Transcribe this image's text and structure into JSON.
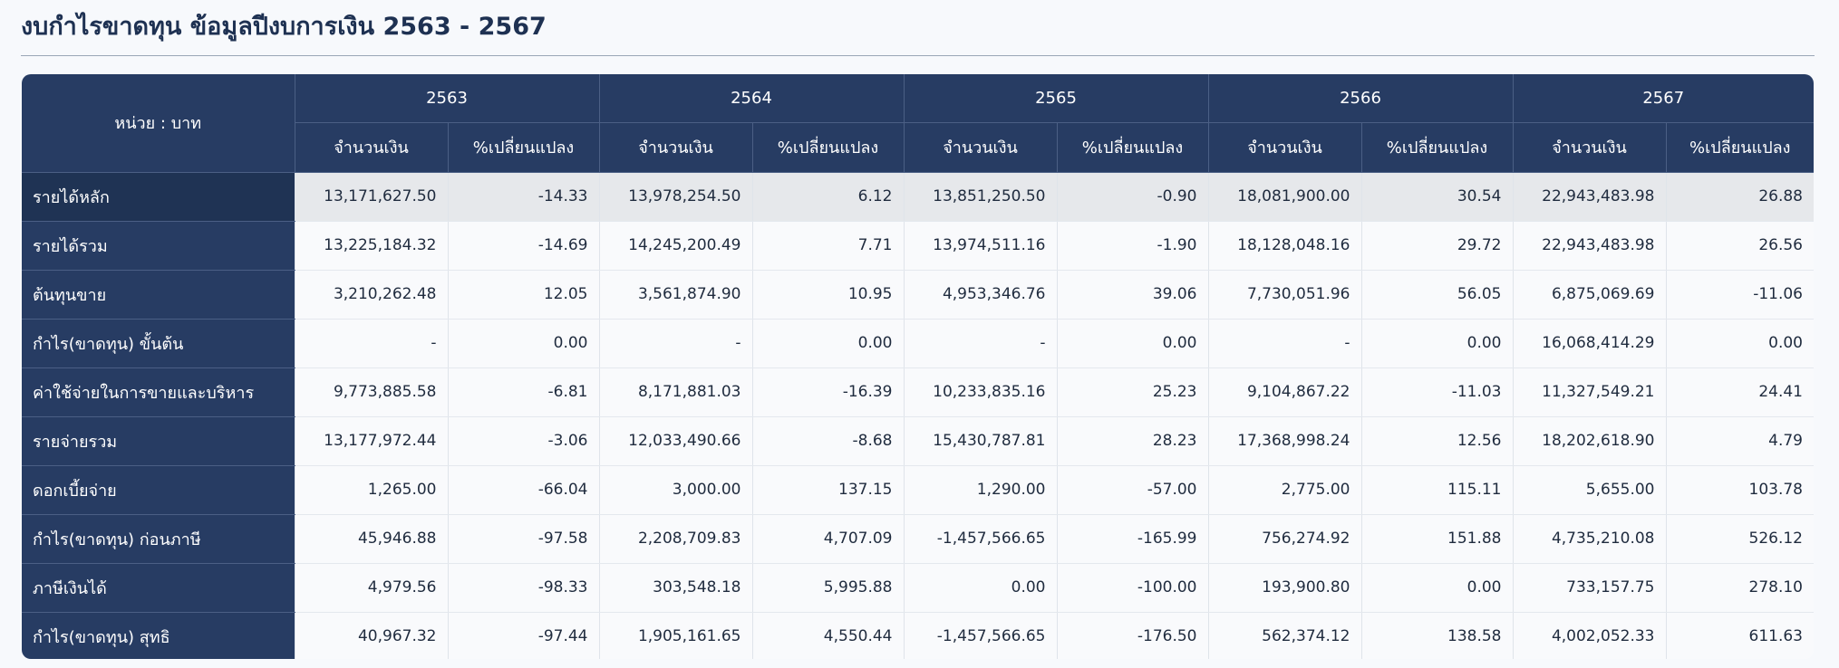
{
  "title": "งบกำไรขาดทุน ข้อมูลปีงบการเงิน 2563 - 2567",
  "unit_label": "หน่วย : บาท",
  "years": [
    "2563",
    "2564",
    "2565",
    "2566",
    "2567"
  ],
  "subheaders": {
    "amount": "จำนวนเงิน",
    "pct_change": "%เปลี่ยนแปลง"
  },
  "rows": [
    {
      "label": "รายได้หลัก",
      "highlight": true,
      "cells": [
        "13,171,627.50",
        "-14.33",
        "13,978,254.50",
        "6.12",
        "13,851,250.50",
        "-0.90",
        "18,081,900.00",
        "30.54",
        "22,943,483.98",
        "26.88"
      ]
    },
    {
      "label": "รายได้รวม",
      "cells": [
        "13,225,184.32",
        "-14.69",
        "14,245,200.49",
        "7.71",
        "13,974,511.16",
        "-1.90",
        "18,128,048.16",
        "29.72",
        "22,943,483.98",
        "26.56"
      ]
    },
    {
      "label": "ต้นทุนขาย",
      "cells": [
        "3,210,262.48",
        "12.05",
        "3,561,874.90",
        "10.95",
        "4,953,346.76",
        "39.06",
        "7,730,051.96",
        "56.05",
        "6,875,069.69",
        "-11.06"
      ]
    },
    {
      "label": "กำไร(ขาดทุน) ขั้นต้น",
      "cells": [
        "-",
        "0.00",
        "-",
        "0.00",
        "-",
        "0.00",
        "-",
        "0.00",
        "16,068,414.29",
        "0.00"
      ]
    },
    {
      "label": "ค่าใช้จ่ายในการขายและบริหาร",
      "cells": [
        "9,773,885.58",
        "-6.81",
        "8,171,881.03",
        "-16.39",
        "10,233,835.16",
        "25.23",
        "9,104,867.22",
        "-11.03",
        "11,327,549.21",
        "24.41"
      ]
    },
    {
      "label": "รายจ่ายรวม",
      "cells": [
        "13,177,972.44",
        "-3.06",
        "12,033,490.66",
        "-8.68",
        "15,430,787.81",
        "28.23",
        "17,368,998.24",
        "12.56",
        "18,202,618.90",
        "4.79"
      ]
    },
    {
      "label": "ดอกเบี้ยจ่าย",
      "cells": [
        "1,265.00",
        "-66.04",
        "3,000.00",
        "137.15",
        "1,290.00",
        "-57.00",
        "2,775.00",
        "115.11",
        "5,655.00",
        "103.78"
      ]
    },
    {
      "label": "กำไร(ขาดทุน) ก่อนภาษี",
      "cells": [
        "45,946.88",
        "-97.58",
        "2,208,709.83",
        "4,707.09",
        "-1,457,566.65",
        "-165.99",
        "756,274.92",
        "151.88",
        "4,735,210.08",
        "526.12"
      ]
    },
    {
      "label": "ภาษีเงินได้",
      "cells": [
        "4,979.56",
        "-98.33",
        "303,548.18",
        "5,995.88",
        "0.00",
        "-100.00",
        "193,900.80",
        "0.00",
        "733,157.75",
        "278.10"
      ]
    },
    {
      "label": "กำไร(ขาดทุน) สุทธิ",
      "cells": [
        "40,967.32",
        "-97.44",
        "1,905,161.65",
        "4,550.44",
        "-1,457,566.65",
        "-176.50",
        "562,374.12",
        "138.58",
        "4,002,052.33",
        "611.63"
      ]
    }
  ]
}
